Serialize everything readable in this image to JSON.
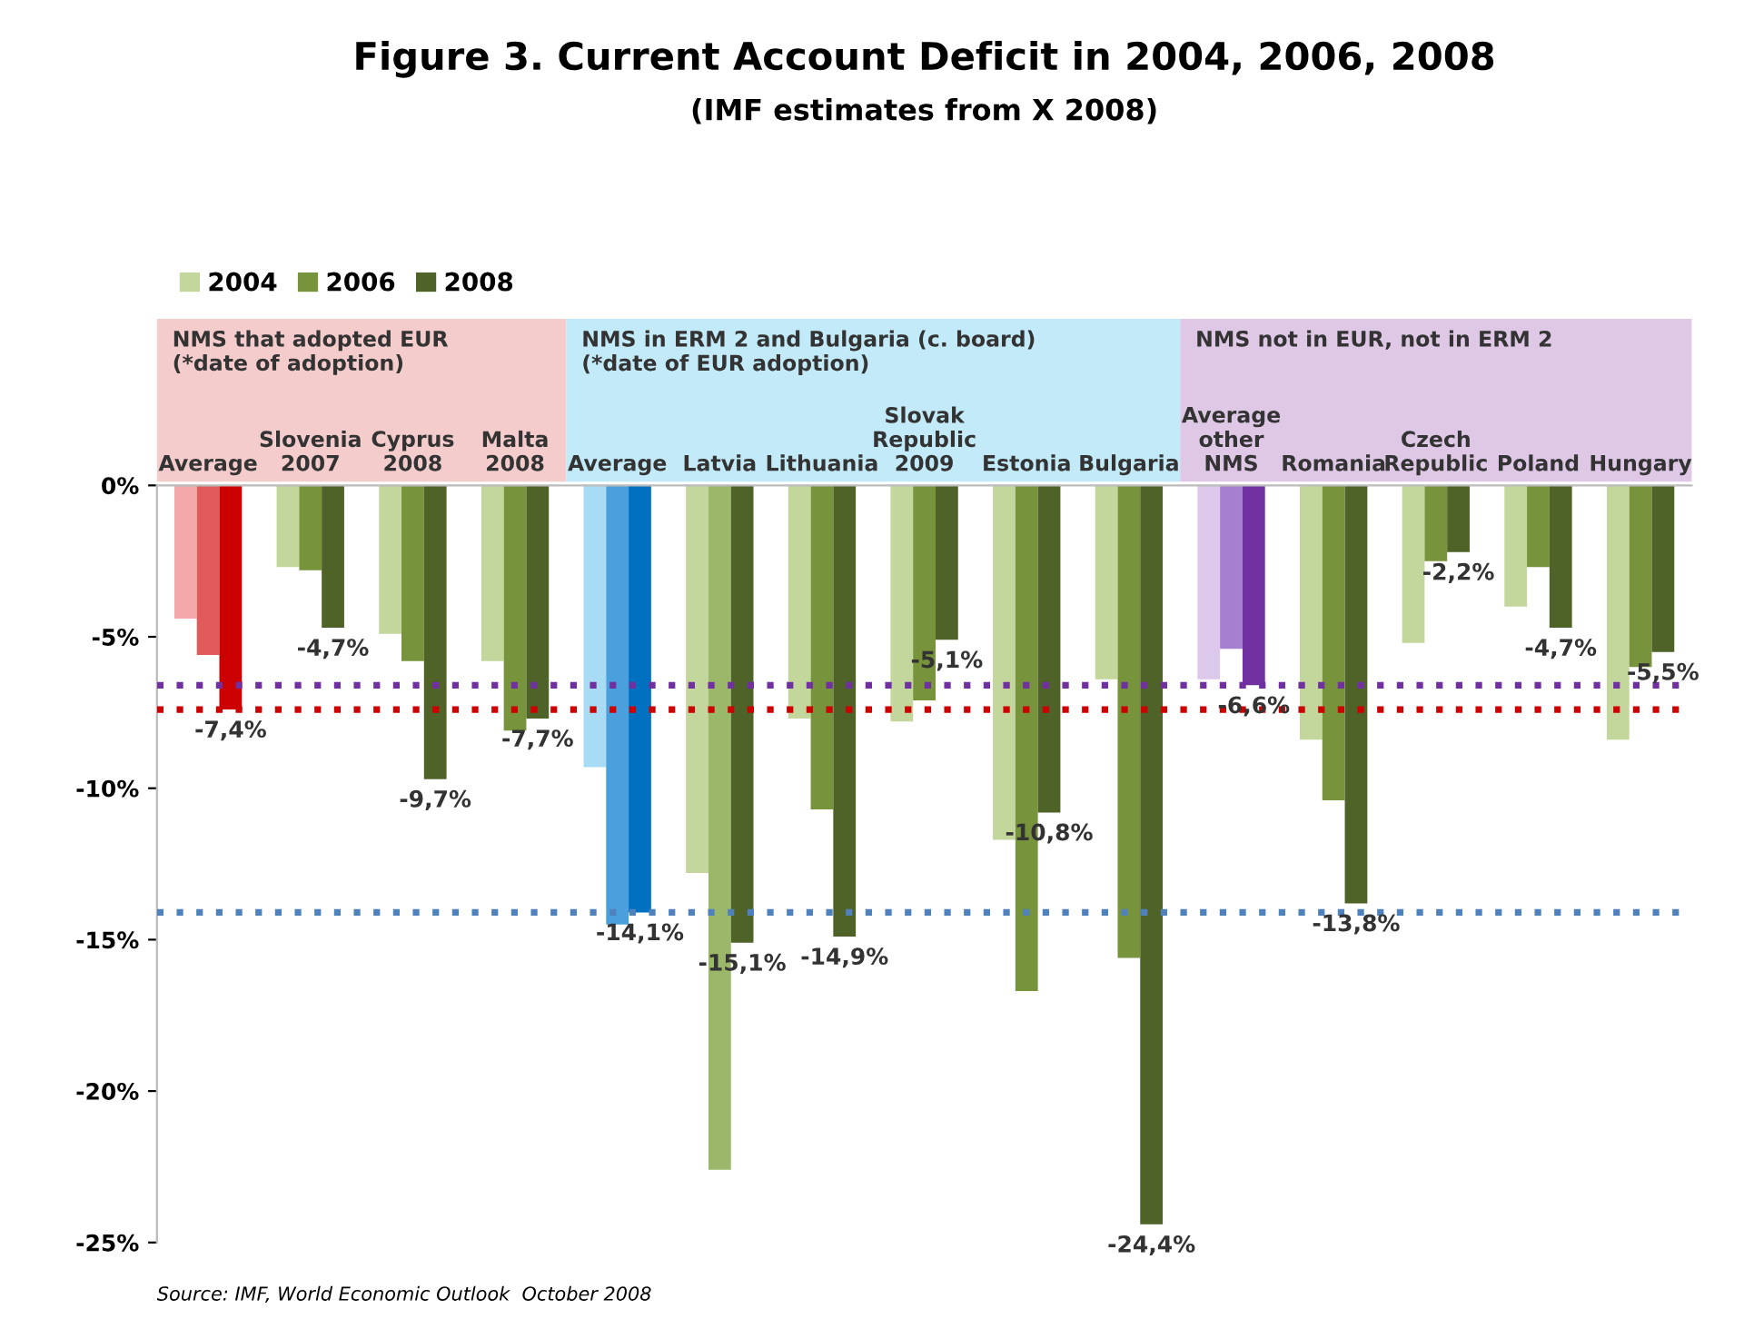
{
  "chart_data": {
    "type": "bar",
    "title": "Figure 3. Current Account Deficit in 2004, 2006, 2008",
    "subtitle": "(IMF estimates from X 2008)",
    "categories": [
      "Average",
      "Slovenia\n2007",
      "Cyprus\n2008",
      "Malta\n2008",
      "Average",
      "Latvia",
      "Lithuania",
      "Slovak\nRepublic\n2009",
      "Estonia",
      "Bulgaria",
      "Average\nother\nNMS",
      "Romania",
      "Czech\nRepublic",
      "Poland",
      "Hungary"
    ],
    "series": [
      {
        "name": "2004",
        "color": "#c3d69b",
        "colors": [
          "#f2a8a8",
          "#c3d69b",
          "#c3d69b",
          "#c3d69b",
          "#a8dcf4",
          "#c3d69b",
          "#c3d69b",
          "#c3d69b",
          "#c3d69b",
          "#c3d69b",
          "#dcc8ea",
          "#c3d69b",
          "#c3d69b",
          "#c3d69b",
          "#c3d69b"
        ],
        "values": [
          -4.4,
          -2.7,
          -4.9,
          -5.8,
          -9.3,
          -12.8,
          -7.7,
          -7.8,
          -11.7,
          -6.4,
          -6.4,
          -8.4,
          -5.2,
          -4.0,
          -8.4
        ]
      },
      {
        "name": "2006",
        "color": "#77933c",
        "colors": [
          "#e05a5a",
          "#77933c",
          "#77933c",
          "#77933c",
          "#4aa0dc",
          "#9bb86a",
          "#77933c",
          "#77933c",
          "#77933c",
          "#77933c",
          "#a77fd0",
          "#77933c",
          "#77933c",
          "#77933c",
          "#77933c"
        ],
        "values": [
          -5.6,
          -2.8,
          -5.8,
          -8.1,
          -14.5,
          -22.6,
          -10.7,
          -7.1,
          -16.7,
          -15.6,
          -5.4,
          -10.4,
          -2.5,
          -2.7,
          -6.0
        ]
      },
      {
        "name": "2008",
        "color": "#4f6228",
        "colors": [
          "#cc0000",
          "#4f6228",
          "#4f6228",
          "#4f6228",
          "#0070c0",
          "#4f6228",
          "#4f6228",
          "#4f6228",
          "#4f6228",
          "#4f6228",
          "#7030a0",
          "#4f6228",
          "#4f6228",
          "#4f6228",
          "#4f6228"
        ],
        "values": [
          -7.4,
          -4.7,
          -9.7,
          -7.7,
          -14.1,
          -15.1,
          -14.9,
          -5.1,
          -10.8,
          -24.4,
          -6.6,
          -13.8,
          -2.2,
          -4.7,
          -5.5
        ],
        "value_labels": [
          "-7,4%",
          "-4,7%",
          "-9,7%",
          "-7,7%",
          "-14,1%",
          "-15,1%",
          "-14,9%",
          "-5,1%",
          "-10,8%",
          "-24,4%",
          "-6,6%",
          "-13,8%",
          "-2,2%",
          "-4,7%",
          "-5,5%"
        ]
      }
    ],
    "ylim": [
      -25,
      0
    ],
    "yticks": [
      {
        "value": 0,
        "label": "0%"
      },
      {
        "value": -5,
        "label": "-5%"
      },
      {
        "value": -10,
        "label": "-10%"
      },
      {
        "value": -15,
        "label": "-15%"
      },
      {
        "value": -20,
        "label": "-20%"
      },
      {
        "value": -25,
        "label": "-25%"
      }
    ],
    "ref_lines": [
      {
        "axis": "y",
        "value": -6.6,
        "color": "#7030a0",
        "line_style": "dotted"
      },
      {
        "axis": "y",
        "value": -7.4,
        "color": "#cc0000",
        "line_style": "dotted"
      },
      {
        "axis": "y",
        "value": -14.1,
        "color": "#4f81bd",
        "line_style": "dotted"
      }
    ],
    "legend": "top left",
    "grid": false,
    "annotations": [
      "NMS that adopted EUR\n(*date of adoption)",
      "NMS in ERM 2 and Bulgaria (c. board)\n(*date of EUR adoption)",
      "NMS not in EUR, not in ERM 2",
      "Source: IMF, World Economic Outlook  October 2008"
    ]
  }
}
